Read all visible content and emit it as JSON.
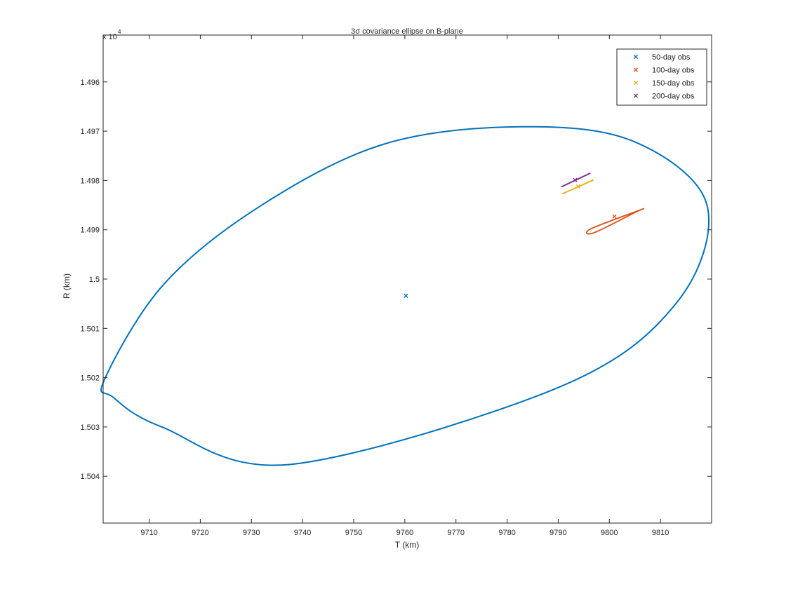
{
  "chart_data": {
    "type": "scatter",
    "title": "3σ covariance ellipse on B-plane",
    "xlabel": "T (km)",
    "ylabel": "R (km)",
    "xlim": [
      9701,
      9820
    ],
    "ylim": [
      14950.5,
      15049.5
    ],
    "y_reversed": true,
    "y_multiplier_label": "x 10",
    "y_multiplier_exponent": "4",
    "x_ticks": [
      9710,
      9720,
      9730,
      9740,
      9750,
      9760,
      9770,
      9780,
      9790,
      9800,
      9810
    ],
    "x_tick_labels": [
      "9710",
      "9720",
      "9730",
      "9740",
      "9750",
      "9760",
      "9770",
      "9780",
      "9790",
      "9800",
      "9810"
    ],
    "y_ticks": [
      14960,
      14970,
      14980,
      14990,
      15000,
      15010,
      15020,
      15030,
      15040
    ],
    "y_tick_labels": [
      "1.496",
      "1.497",
      "1.498",
      "1.499",
      "1.5",
      "1.501",
      "1.502",
      "1.503",
      "1.504"
    ],
    "legend_position": "top-right",
    "series": [
      {
        "name": "50-day obs",
        "color": "#0072BD",
        "center": [
          9760.2,
          15003.4
        ],
        "ellipse": [
          [
            9701.3,
            15020.3
          ],
          [
            9712.9,
            15001.0
          ],
          [
            9732.0,
            14985.0
          ],
          [
            9756.0,
            14972.6
          ],
          [
            9782.8,
            14969.1
          ],
          [
            9804.8,
            14972.1
          ],
          [
            9819.1,
            14985.0
          ],
          [
            9813.0,
            15005.0
          ],
          [
            9790.0,
            15022.0
          ],
          [
            9737.6,
            15037.6
          ],
          [
            9712.5,
            15030.0
          ],
          [
            9703.0,
            15024.0
          ]
        ]
      },
      {
        "name": "100-day obs",
        "color": "#D95319",
        "center": [
          9801.0,
          14987.3
        ],
        "ellipse": [
          [
            9806.0,
            14986.0
          ],
          [
            9796.4,
            14989.8
          ],
          [
            9797.0,
            14990.6
          ],
          [
            9805.0,
            14986.5
          ]
        ]
      },
      {
        "name": "150-day obs",
        "color": "#EDB120",
        "center": [
          9793.9,
          14981.2
        ],
        "segment": [
          [
            9790.8,
            14982.7
          ],
          [
            9796.9,
            14979.9
          ]
        ]
      },
      {
        "name": "200-day obs",
        "color": "#7E2F8E",
        "center": [
          9793.3,
          14979.9
        ],
        "segment": [
          [
            9790.6,
            14981.3
          ],
          [
            9796.3,
            14978.5
          ]
        ]
      }
    ]
  }
}
